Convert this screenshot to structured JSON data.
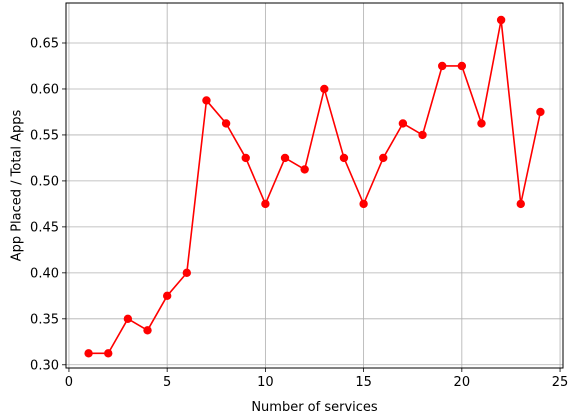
{
  "chart_data": {
    "type": "line",
    "title": "",
    "xlabel": "Number of services",
    "ylabel": "App Placed / Total Apps",
    "xlim": [
      -0.15,
      25.15
    ],
    "ylim": [
      0.2965,
      0.6935
    ],
    "xticks": [
      0,
      5,
      10,
      15,
      20,
      25
    ],
    "xtick_labels": [
      "0",
      "5",
      "10",
      "15",
      "20",
      "25"
    ],
    "yticks": [
      0.3,
      0.35,
      0.4,
      0.45,
      0.5,
      0.55,
      0.6,
      0.65
    ],
    "ytick_labels": [
      "0.30",
      "0.35",
      "0.40",
      "0.45",
      "0.50",
      "0.55",
      "0.60",
      "0.65"
    ],
    "grid": true,
    "series": [
      {
        "color": "#ff0000",
        "marker": "circle",
        "x": [
          1,
          2,
          3,
          4,
          5,
          6,
          7,
          8,
          9,
          10,
          11,
          12,
          13,
          14,
          15,
          16,
          17,
          18,
          19,
          20,
          21,
          22,
          23,
          24
        ],
        "y": [
          0.3125,
          0.3125,
          0.35,
          0.3375,
          0.375,
          0.4,
          0.5875,
          0.5625,
          0.525,
          0.475,
          0.525,
          0.5125,
          0.6,
          0.525,
          0.475,
          0.525,
          0.5625,
          0.55,
          0.625,
          0.625,
          0.5625,
          0.675,
          0.475,
          0.575
        ]
      }
    ]
  }
}
